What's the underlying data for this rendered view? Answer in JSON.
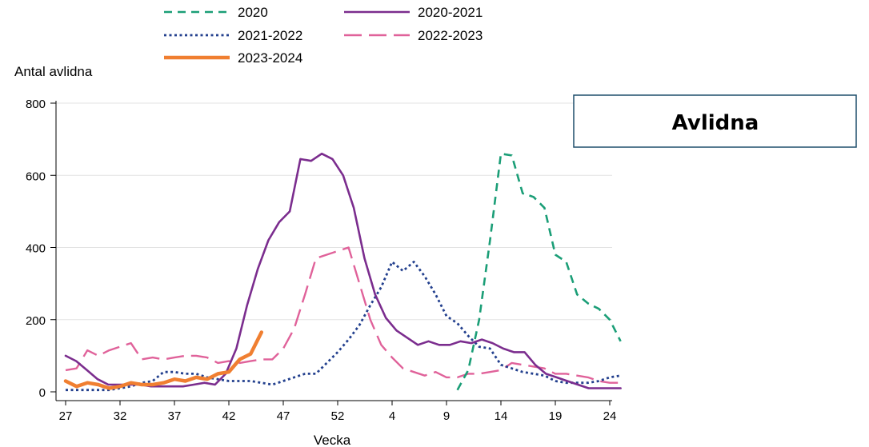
{
  "panel": {
    "title": "Avlidna"
  },
  "colors": {
    "2020": "#1b9e77",
    "2020-2021": "#7b2d8e",
    "2021-2022": "#23408e",
    "2022-2023": "#e0629a",
    "2023-2024": "#f07f31",
    "panel_border": "#1f4e6b",
    "grid": "#e3e3e3"
  },
  "chart_data": {
    "type": "line",
    "xlabel": "Vecka",
    "ylabel": "Antal avlidna",
    "ylim": [
      0,
      800
    ],
    "yticks": [
      0,
      200,
      400,
      600,
      800
    ],
    "xtick_labels": [
      "27",
      "32",
      "37",
      "42",
      "47",
      "52",
      "4",
      "9",
      "14",
      "19",
      "24"
    ],
    "x_note": "weeks 27-52 of the first year followed by weeks 1-26 of the next year",
    "grid": "horizontal",
    "legend_position": "top",
    "series": [
      {
        "name": "2020",
        "style": "dashed",
        "weeks": [
          "11",
          "12",
          "13",
          "14",
          "15",
          "16",
          "17",
          "18",
          "19",
          "20",
          "21",
          "22",
          "23",
          "24",
          "25",
          "26"
        ],
        "values": [
          5,
          60,
          200,
          420,
          660,
          655,
          550,
          540,
          510,
          380,
          360,
          270,
          245,
          230,
          200,
          140
        ]
      },
      {
        "name": "2020-2021",
        "style": "solid",
        "weeks": [
          "27",
          "28",
          "29",
          "30",
          "31",
          "32",
          "33",
          "34",
          "35",
          "36",
          "37",
          "38",
          "39",
          "40",
          "41",
          "42",
          "43",
          "44",
          "45",
          "46",
          "47",
          "48",
          "49",
          "50",
          "51",
          "52",
          "53",
          "1",
          "2",
          "3",
          "4",
          "5",
          "6",
          "7",
          "8",
          "9",
          "10",
          "11",
          "12",
          "13",
          "14",
          "15",
          "16",
          "17",
          "18",
          "19",
          "20",
          "21",
          "22",
          "23",
          "24",
          "25",
          "26"
        ],
        "values": [
          100,
          85,
          60,
          35,
          20,
          20,
          20,
          20,
          15,
          15,
          15,
          15,
          20,
          25,
          20,
          50,
          120,
          240,
          340,
          420,
          470,
          500,
          645,
          640,
          660,
          645,
          600,
          510,
          370,
          270,
          205,
          170,
          150,
          130,
          140,
          130,
          130,
          140,
          135,
          145,
          135,
          120,
          110,
          110,
          75,
          50,
          40,
          30,
          20,
          10,
          10,
          10,
          10
        ]
      },
      {
        "name": "2021-2022",
        "style": "dotted",
        "weeks": [
          "27",
          "28",
          "29",
          "30",
          "31",
          "32",
          "33",
          "34",
          "35",
          "36",
          "37",
          "38",
          "39",
          "40",
          "41",
          "42",
          "43",
          "44",
          "45",
          "46",
          "47",
          "48",
          "49",
          "50",
          "51",
          "52",
          "1",
          "2",
          "3",
          "4",
          "5",
          "6",
          "7",
          "8",
          "9",
          "10",
          "11",
          "12",
          "13",
          "14",
          "15",
          "16",
          "17",
          "18",
          "19",
          "20",
          "21",
          "22",
          "23",
          "24",
          "25",
          "26"
        ],
        "values": [
          5,
          5,
          5,
          5,
          5,
          10,
          15,
          25,
          30,
          55,
          55,
          50,
          50,
          40,
          35,
          30,
          30,
          30,
          25,
          20,
          30,
          40,
          50,
          50,
          80,
          110,
          145,
          185,
          240,
          290,
          360,
          335,
          360,
          320,
          270,
          210,
          190,
          155,
          125,
          120,
          75,
          65,
          55,
          50,
          45,
          30,
          25,
          25,
          25,
          30,
          40,
          45
        ]
      },
      {
        "name": "2022-2023",
        "style": "longdash",
        "weeks": [
          "27",
          "28",
          "29",
          "30",
          "31",
          "32",
          "33",
          "34",
          "35",
          "36",
          "37",
          "38",
          "39",
          "40",
          "41",
          "42",
          "43",
          "44",
          "45",
          "46",
          "47",
          "48",
          "49",
          "50",
          "51",
          "52",
          "1",
          "2",
          "3",
          "4",
          "5",
          "6",
          "7",
          "8",
          "9",
          "10",
          "11",
          "12",
          "13",
          "14",
          "15",
          "16",
          "17",
          "18",
          "19",
          "20",
          "21",
          "22",
          "23",
          "24",
          "25",
          "26"
        ],
        "values": [
          60,
          65,
          115,
          100,
          115,
          125,
          135,
          90,
          95,
          90,
          95,
          100,
          100,
          95,
          80,
          85,
          80,
          85,
          90,
          90,
          120,
          175,
          270,
          370,
          380,
          390,
          400,
          300,
          200,
          130,
          95,
          65,
          55,
          45,
          55,
          40,
          40,
          50,
          50,
          55,
          60,
          80,
          75,
          70,
          65,
          50,
          50,
          45,
          40,
          30,
          25,
          25
        ]
      },
      {
        "name": "2023-2024",
        "style": "solid-thick",
        "weeks": [
          "27",
          "28",
          "29",
          "30",
          "31",
          "32",
          "33",
          "34",
          "35",
          "36",
          "37",
          "38",
          "39",
          "40",
          "41",
          "42",
          "43",
          "44",
          "45"
        ],
        "values": [
          30,
          15,
          25,
          20,
          10,
          15,
          25,
          20,
          20,
          25,
          35,
          30,
          40,
          35,
          50,
          55,
          90,
          105,
          165
        ]
      }
    ]
  }
}
